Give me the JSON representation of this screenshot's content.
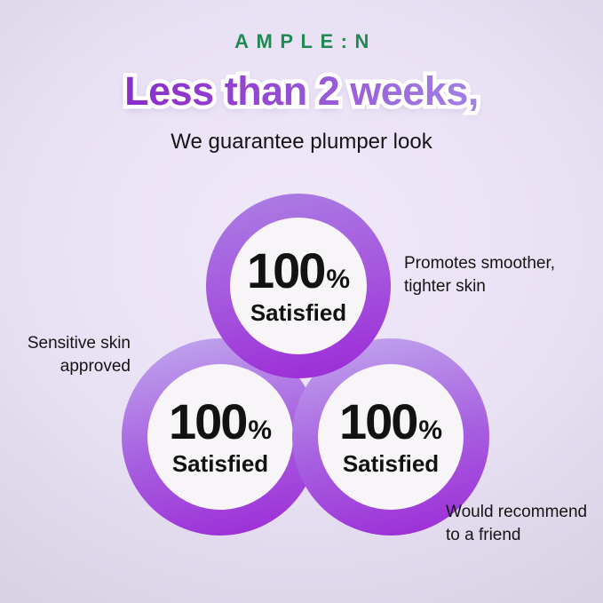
{
  "brand": {
    "name": "AMPLE:N"
  },
  "header": {
    "headline": "Less than 2 weeks,",
    "subtitle": "We guarantee plumper look"
  },
  "stats": [
    {
      "value": "100",
      "unit": "%",
      "label": "Satisfied"
    },
    {
      "value": "100",
      "unit": "%",
      "label": "Satisfied"
    },
    {
      "value": "100",
      "unit": "%",
      "label": "Satisfied"
    }
  ],
  "annotations": {
    "promotes": {
      "line1": "Promotes smoother,",
      "line2": "tighter skin"
    },
    "sensitive": {
      "line1": "Sensitive skin",
      "line2": "approved"
    },
    "recommend": {
      "line1": "Would recommend",
      "line2": "to a friend"
    }
  },
  "colors": {
    "brand_green": "#218a52",
    "headline_purple_dark": "#8b2cc9",
    "headline_purple_light": "#a083e3",
    "ring_purple_light": "#ab7ee3",
    "ring_purple_pale": "#c2a9ee",
    "ring_purple_dark": "#9c2bd7",
    "inner_circle": "#f7f5f8",
    "background_top": "#f0e9fa",
    "background_mid": "#e9e1f4",
    "background_low": "#dcd5e8",
    "background_bottom": "#d5cede",
    "text_black": "#141414"
  }
}
